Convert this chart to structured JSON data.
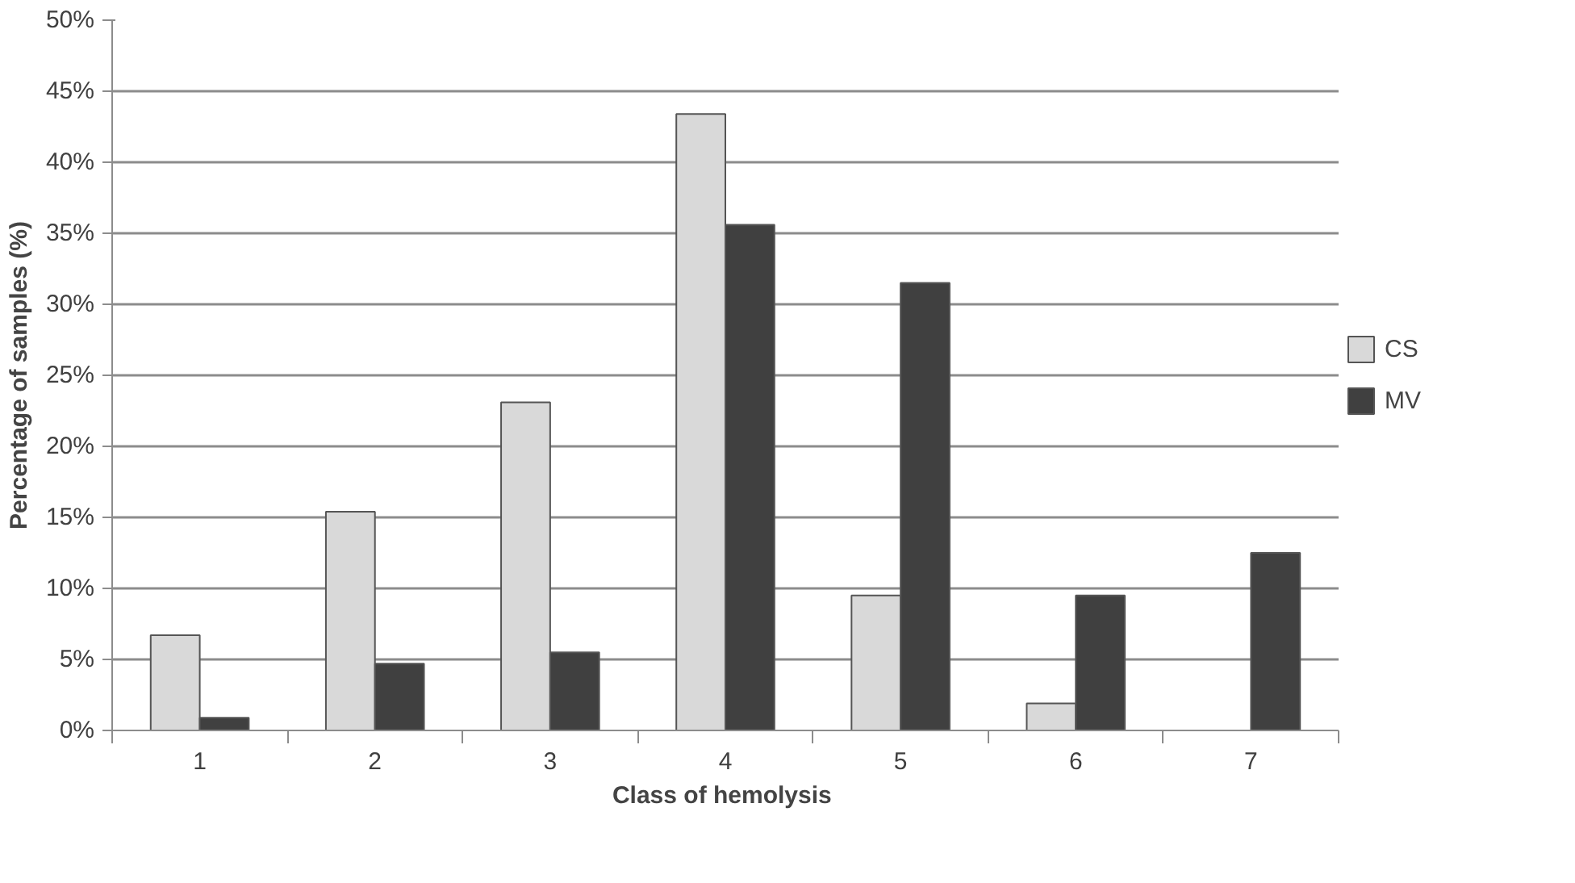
{
  "chart_data": {
    "type": "bar",
    "xlabel": "Class  of hemolysis",
    "ylabel": "Percentage of samples (%)",
    "categories": [
      "1",
      "2",
      "3",
      "4",
      "5",
      "6",
      "7"
    ],
    "series": [
      {
        "name": "CS",
        "color": "#d9d9d9",
        "values": [
          6.7,
          15.4,
          23.1,
          43.4,
          9.5,
          1.9,
          null
        ]
      },
      {
        "name": "MV",
        "color": "#404040",
        "values": [
          0.9,
          4.7,
          5.5,
          35.6,
          31.5,
          9.5,
          12.5
        ]
      }
    ],
    "ylim": [
      0,
      50
    ],
    "yticks": [
      {
        "value": 0,
        "label": "0%"
      },
      {
        "value": 5,
        "label": "5%"
      },
      {
        "value": 10,
        "label": "10%"
      },
      {
        "value": 15,
        "label": "15%"
      },
      {
        "value": 20,
        "label": "20%"
      },
      {
        "value": 25,
        "label": "25%"
      },
      {
        "value": 30,
        "label": "30%"
      },
      {
        "value": 35,
        "label": "35%"
      },
      {
        "value": 40,
        "label": "40%"
      },
      {
        "value": 45,
        "label": "45%"
      },
      {
        "value": 50,
        "label": "50%"
      }
    ],
    "grid": "y",
    "legend": "right"
  }
}
